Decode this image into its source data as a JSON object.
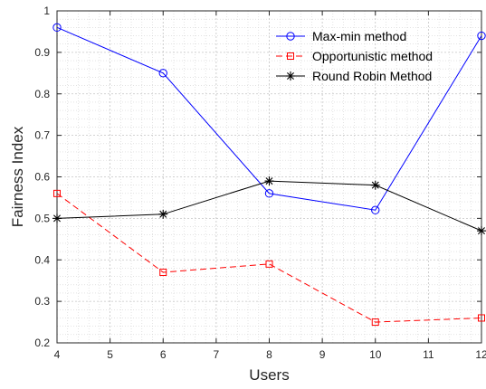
{
  "chart_data": {
    "type": "line",
    "xlabel": "Users",
    "ylabel": "Fairness Index",
    "xlim": [
      4,
      12
    ],
    "ylim": [
      0.2,
      1
    ],
    "xticks": [
      "4",
      "5",
      "6",
      "7",
      "8",
      "9",
      "10",
      "11",
      "12"
    ],
    "yticks": [
      "0.2",
      "0.3",
      "0.4",
      "0.5",
      "0.6",
      "0.7",
      "0.8",
      "0.9",
      "1"
    ],
    "grid": true,
    "minor_grid": true,
    "legend_position": "top-right",
    "x": [
      4,
      6,
      8,
      10,
      12
    ],
    "series": [
      {
        "name": "Max-min method",
        "values": [
          0.96,
          0.85,
          0.56,
          0.52,
          0.94
        ],
        "color": "#0000ff",
        "marker": "circle",
        "line": "solid"
      },
      {
        "name": "Opportunistic method",
        "values": [
          0.56,
          0.37,
          0.39,
          0.25,
          0.26
        ],
        "color": "#ff0000",
        "marker": "square",
        "line": "dashed"
      },
      {
        "name": "Round Robin Method",
        "values": [
          0.5,
          0.51,
          0.59,
          0.58,
          0.47
        ],
        "color": "#000000",
        "marker": "asterisk",
        "line": "solid"
      }
    ]
  }
}
